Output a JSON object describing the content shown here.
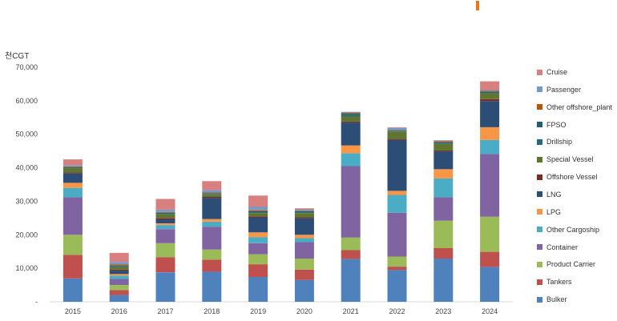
{
  "chart_data": {
    "type": "bar",
    "stacked": true,
    "title": "",
    "unit_label": "천CGT",
    "xlabel": "",
    "ylabel": "",
    "ylim": [
      0,
      70000
    ],
    "y_ticks": [
      0,
      10000,
      20000,
      30000,
      40000,
      50000,
      60000,
      70000
    ],
    "y_tick_labels": [
      "-",
      "10,000",
      "20,000",
      "30,000",
      "40,000",
      "50,000",
      "60,000",
      "70,000"
    ],
    "grid": false,
    "legend_position": "right",
    "categories": [
      "2015",
      "2016",
      "2017",
      "2018",
      "2019",
      "2020",
      "2021",
      "2022",
      "2023",
      "2024"
    ],
    "series": [
      {
        "name": "Bulker",
        "color": "#4f81bd",
        "values": [
          7000,
          2000,
          8800,
          9000,
          7400,
          6500,
          12800,
          9500,
          12900,
          10400
        ]
      },
      {
        "name": "Tankers",
        "color": "#c0504d",
        "values": [
          7000,
          1500,
          4500,
          3600,
          3800,
          3100,
          2600,
          1000,
          3100,
          4500
        ]
      },
      {
        "name": "Product Carrier",
        "color": "#9bbb59",
        "values": [
          6000,
          1500,
          4200,
          3000,
          3000,
          3300,
          3800,
          3000,
          8200,
          10500
        ]
      },
      {
        "name": "Container",
        "color": "#8064a2",
        "values": [
          11200,
          1800,
          4200,
          6800,
          3300,
          4900,
          21300,
          13100,
          7000,
          18700
        ]
      },
      {
        "name": "Other Cargoship",
        "color": "#4bacc6",
        "values": [
          2800,
          1000,
          1200,
          1500,
          1800,
          1200,
          3800,
          5300,
          5600,
          4200
        ]
      },
      {
        "name": "LPG",
        "color": "#f79646",
        "values": [
          1500,
          500,
          500,
          800,
          1400,
          1000,
          2400,
          1200,
          2800,
          3800
        ]
      },
      {
        "name": "LNG",
        "color": "#2c4d75",
        "values": [
          2800,
          1000,
          1200,
          6300,
          4500,
          4900,
          6800,
          15200,
          5300,
          7800
        ]
      },
      {
        "name": "Offshore Vessel",
        "color": "#772c2a",
        "values": [
          300,
          300,
          400,
          300,
          300,
          300,
          300,
          300,
          300,
          600
        ]
      },
      {
        "name": "Special Vessel",
        "color": "#5f7530",
        "values": [
          1200,
          800,
          1200,
          700,
          1000,
          1300,
          1500,
          2100,
          1900,
          1700
        ]
      },
      {
        "name": "Drillship",
        "color": "#276a7c",
        "values": [
          200,
          200,
          200,
          200,
          200,
          200,
          200,
          200,
          200,
          200
        ]
      },
      {
        "name": "FPSO",
        "color": "#1f5f6f",
        "values": [
          200,
          200,
          200,
          200,
          300,
          300,
          600,
          200,
          300,
          300
        ]
      },
      {
        "name": "Other offshore_plant",
        "color": "#b65708",
        "values": [
          200,
          300,
          200,
          200,
          300,
          200,
          300,
          200,
          300,
          300
        ]
      },
      {
        "name": "Passenger",
        "color": "#729aca",
        "values": [
          300,
          800,
          700,
          700,
          1000,
          400,
          300,
          600,
          300,
          300
        ]
      },
      {
        "name": "Cruise",
        "color": "#d7807f",
        "values": [
          1800,
          2700,
          3200,
          2700,
          3400,
          300,
          0,
          200,
          0,
          2500
        ]
      }
    ],
    "legend_order": [
      "Cruise",
      "Passenger",
      "Other offshore_plant",
      "FPSO",
      "Drillship",
      "Special Vessel",
      "Offshore Vessel",
      "LNG",
      "LPG",
      "Other Cargoship",
      "Container",
      "Product Carrier",
      "Tankers",
      "Bulker"
    ]
  }
}
